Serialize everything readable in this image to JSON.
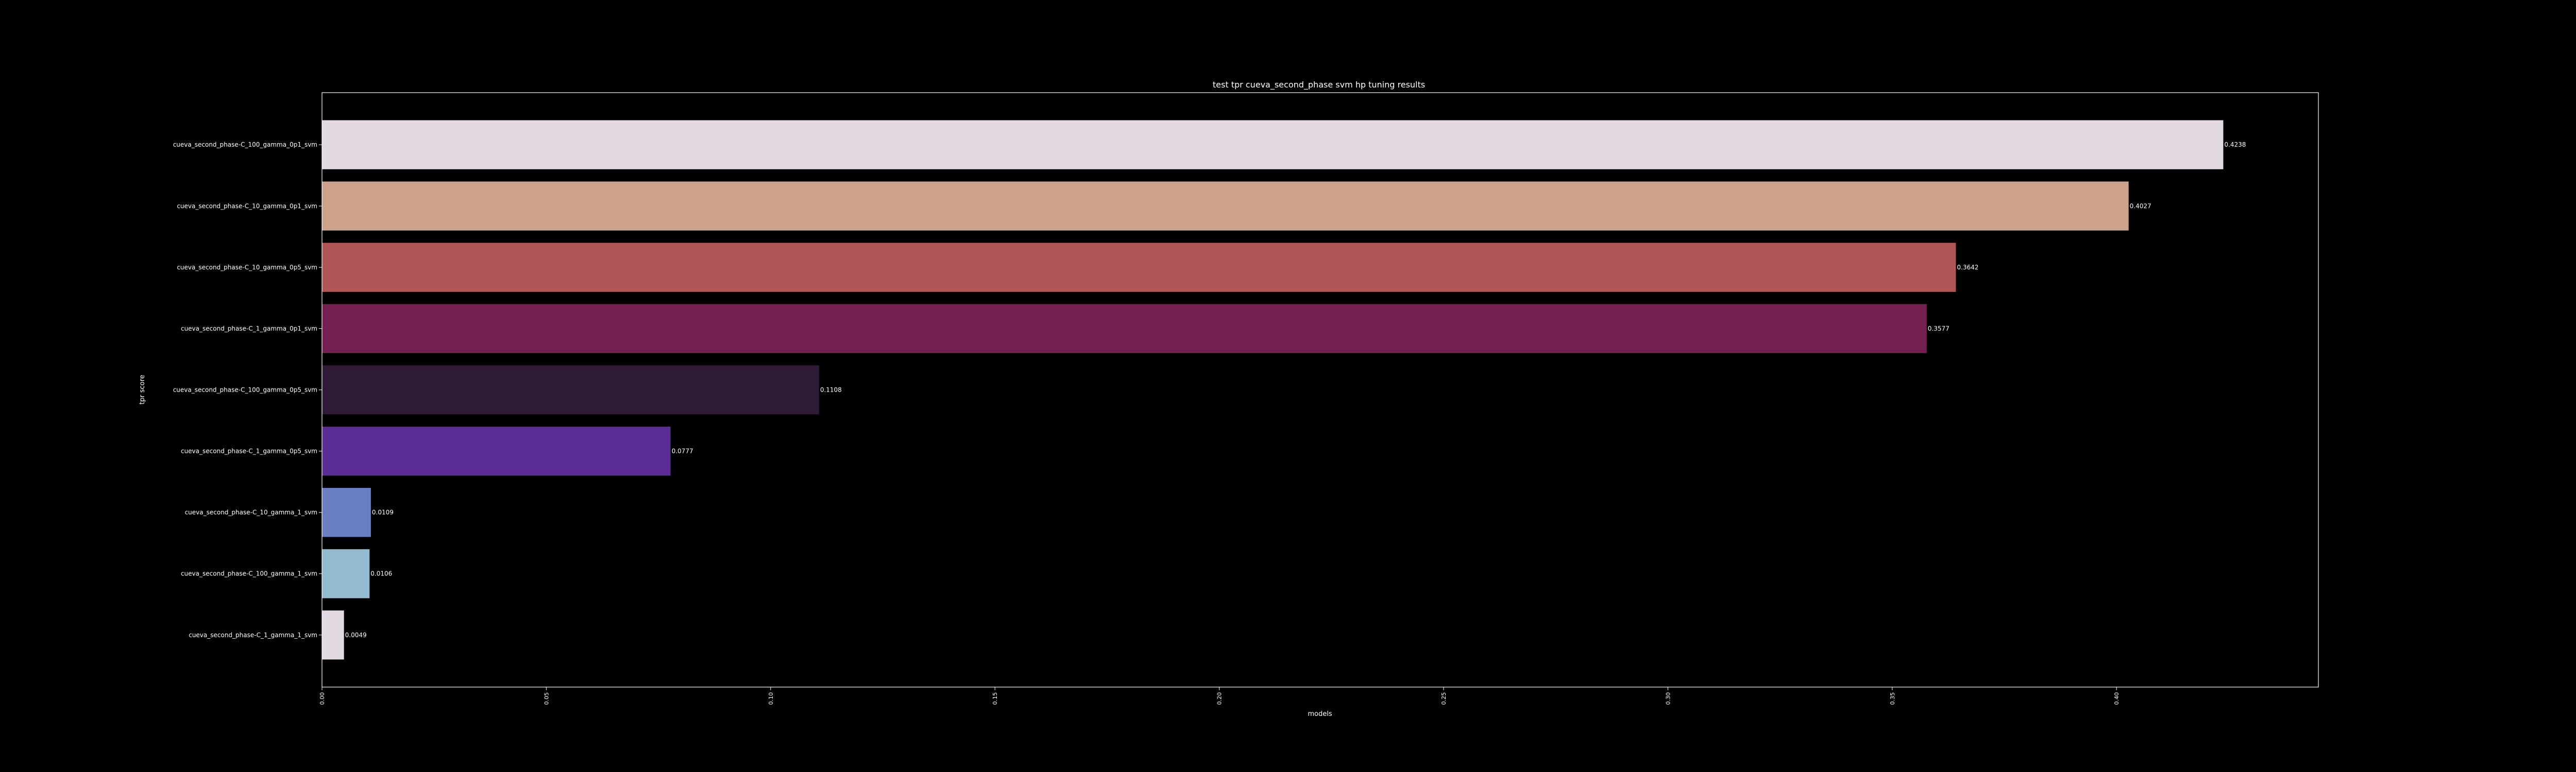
{
  "chart_data": {
    "type": "bar",
    "orientation": "horizontal",
    "title": "test tpr cueva_second_phase svm hp tuning results",
    "xlabel": "models",
    "ylabel": "tpr score",
    "xlim": [
      0,
      0.445
    ],
    "xticks": [
      "0.00",
      "0.05",
      "0.10",
      "0.15",
      "0.20",
      "0.25",
      "0.30",
      "0.35",
      "0.40"
    ],
    "categories": [
      "cueva_second_phase-C_100_gamma_0p1_svm",
      "cueva_second_phase-C_10_gamma_0p1_svm",
      "cueva_second_phase-C_10_gamma_0p5_svm",
      "cueva_second_phase-C_1_gamma_0p1_svm",
      "cueva_second_phase-C_100_gamma_0p5_svm",
      "cueva_second_phase-C_1_gamma_0p5_svm",
      "cueva_second_phase-C_10_gamma_1_svm",
      "cueva_second_phase-C_100_gamma_1_svm",
      "cueva_second_phase-C_1_gamma_1_svm"
    ],
    "values": [
      0.4238,
      0.4027,
      0.3642,
      0.3577,
      0.1108,
      0.0777,
      0.0109,
      0.0106,
      0.0049
    ],
    "value_labels": [
      "0.4238",
      "0.4027",
      "0.3642",
      "0.3577",
      "0.1108",
      "0.0777",
      "0.0109",
      "0.0106",
      "0.0049"
    ],
    "colors": [
      "#e2d9e2",
      "#cca28b",
      "#b05555",
      "#731f4f",
      "#2f1a35",
      "#5a2c94",
      "#6a7ec2",
      "#93bbd0",
      "#e2d9e2"
    ],
    "grid": false,
    "background": "#000000",
    "foreground": "#ffffff"
  }
}
